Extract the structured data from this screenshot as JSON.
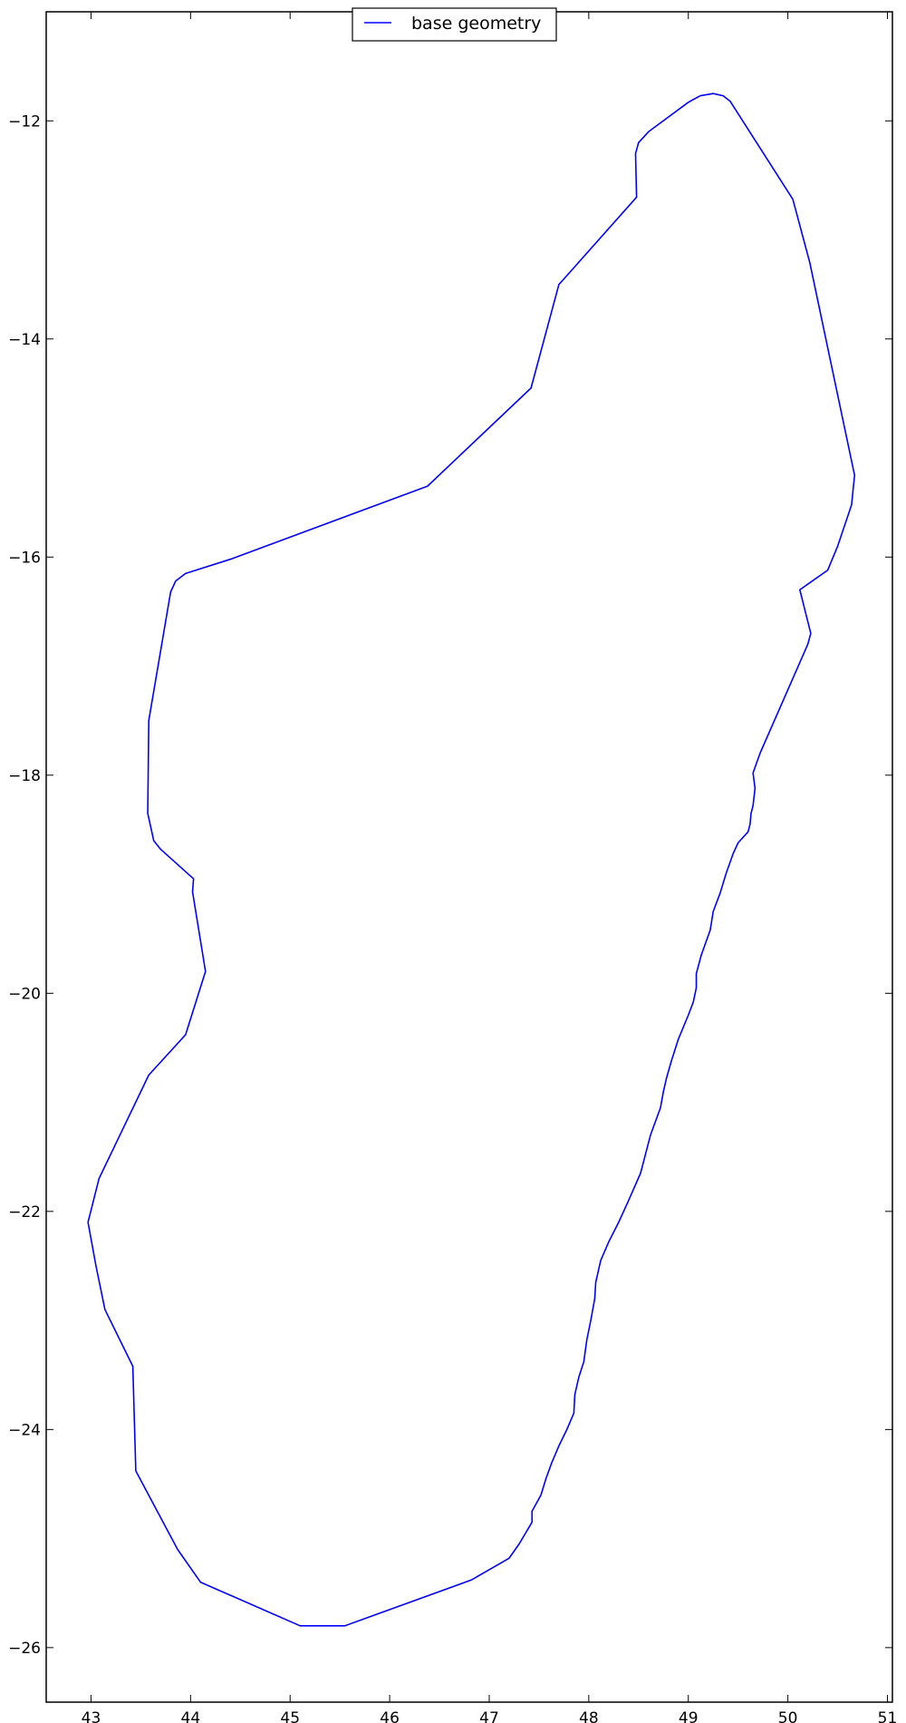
{
  "chart_data": {
    "type": "line",
    "title": "",
    "xlabel": "",
    "ylabel": "",
    "xlim": [
      42.55,
      51.05
    ],
    "ylim": [
      -26.5,
      -11.0
    ],
    "x_ticks": [
      43,
      44,
      45,
      46,
      47,
      48,
      49,
      50,
      51
    ],
    "y_ticks": [
      -12,
      -14,
      -16,
      -18,
      -20,
      -22,
      -24,
      -26
    ],
    "x_tick_labels": [
      "43",
      "44",
      "45",
      "46",
      "47",
      "48",
      "49",
      "50",
      "51"
    ],
    "y_tick_labels": [
      "−12",
      "−14",
      "−16",
      "−18",
      "−20",
      "−22",
      "−24",
      "−26"
    ],
    "grid": false,
    "legend_position": "top-center",
    "series": [
      {
        "name": "base geometry",
        "color": "#0000ff",
        "points": [
          [
            49.25,
            -11.75
          ],
          [
            49.12,
            -11.77
          ],
          [
            49.0,
            -11.83
          ],
          [
            48.6,
            -12.1
          ],
          [
            48.5,
            -12.2
          ],
          [
            48.47,
            -12.3
          ],
          [
            48.48,
            -12.7
          ],
          [
            47.75,
            -13.45
          ],
          [
            47.7,
            -13.5
          ],
          [
            47.42,
            -14.45
          ],
          [
            46.38,
            -15.35
          ],
          [
            44.4,
            -16.02
          ],
          [
            43.95,
            -16.15
          ],
          [
            43.85,
            -16.22
          ],
          [
            43.8,
            -16.32
          ],
          [
            43.58,
            -17.5
          ],
          [
            43.57,
            -18.35
          ],
          [
            43.63,
            -18.6
          ],
          [
            43.7,
            -18.68
          ],
          [
            44.03,
            -18.95
          ],
          [
            44.02,
            -19.07
          ],
          [
            44.15,
            -19.8
          ],
          [
            43.95,
            -20.38
          ],
          [
            43.58,
            -20.75
          ],
          [
            43.08,
            -21.7
          ],
          [
            42.97,
            -22.1
          ],
          [
            43.05,
            -22.5
          ],
          [
            43.14,
            -22.9
          ],
          [
            43.42,
            -23.42
          ],
          [
            43.45,
            -24.38
          ],
          [
            43.87,
            -25.1
          ],
          [
            44.1,
            -25.4
          ],
          [
            45.1,
            -25.8
          ],
          [
            45.55,
            -25.8
          ],
          [
            46.82,
            -25.38
          ],
          [
            47.2,
            -25.18
          ],
          [
            47.3,
            -25.05
          ],
          [
            47.43,
            -24.85
          ],
          [
            47.43,
            -24.75
          ],
          [
            47.52,
            -24.6
          ],
          [
            47.57,
            -24.45
          ],
          [
            47.63,
            -24.3
          ],
          [
            47.7,
            -24.15
          ],
          [
            47.78,
            -24.0
          ],
          [
            47.85,
            -23.85
          ],
          [
            47.86,
            -23.68
          ],
          [
            47.9,
            -23.52
          ],
          [
            47.95,
            -23.38
          ],
          [
            47.98,
            -23.18
          ],
          [
            48.02,
            -23.0
          ],
          [
            48.06,
            -22.8
          ],
          [
            48.07,
            -22.65
          ],
          [
            48.12,
            -22.45
          ],
          [
            48.2,
            -22.28
          ],
          [
            48.3,
            -22.1
          ],
          [
            48.4,
            -21.9
          ],
          [
            48.52,
            -21.65
          ],
          [
            48.62,
            -21.3
          ],
          [
            48.72,
            -21.05
          ],
          [
            48.75,
            -20.9
          ],
          [
            48.78,
            -20.78
          ],
          [
            48.83,
            -20.62
          ],
          [
            48.9,
            -20.42
          ],
          [
            49.0,
            -20.2
          ],
          [
            49.05,
            -20.08
          ],
          [
            49.08,
            -19.95
          ],
          [
            49.08,
            -19.82
          ],
          [
            49.13,
            -19.65
          ],
          [
            49.22,
            -19.42
          ],
          [
            49.25,
            -19.25
          ],
          [
            49.32,
            -19.08
          ],
          [
            49.38,
            -18.9
          ],
          [
            49.45,
            -18.72
          ],
          [
            49.5,
            -18.62
          ],
          [
            49.6,
            -18.52
          ],
          [
            49.62,
            -18.45
          ],
          [
            49.63,
            -18.35
          ],
          [
            49.65,
            -18.28
          ],
          [
            49.67,
            -18.12
          ],
          [
            49.65,
            -17.98
          ],
          [
            49.72,
            -17.8
          ],
          [
            50.2,
            -16.8
          ],
          [
            50.23,
            -16.7
          ],
          [
            50.12,
            -16.3
          ],
          [
            50.4,
            -16.12
          ],
          [
            50.5,
            -15.9
          ],
          [
            50.64,
            -15.52
          ],
          [
            50.67,
            -15.25
          ],
          [
            50.22,
            -13.3
          ],
          [
            50.05,
            -12.72
          ],
          [
            49.42,
            -11.82
          ],
          [
            49.35,
            -11.77
          ]
        ]
      }
    ]
  }
}
